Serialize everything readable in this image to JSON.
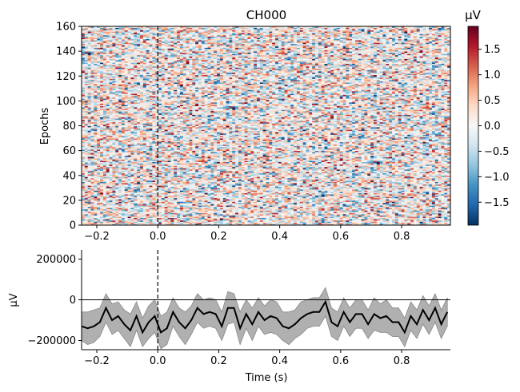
{
  "chart_data": [
    {
      "type": "heatmap",
      "title": "CH000",
      "ylabel": "Epochs",
      "xlim": [
        -0.25,
        0.96
      ],
      "ylim": [
        0,
        160
      ],
      "n_epochs": 160,
      "n_times": 120,
      "xticks": [
        -0.2,
        0.0,
        0.2,
        0.4,
        0.6,
        0.8
      ],
      "xtick_labels": [
        "−0.2",
        "0.0",
        "0.2",
        "0.4",
        "0.6",
        "0.8"
      ],
      "yticks": [
        0,
        20,
        40,
        60,
        80,
        100,
        120,
        140,
        160
      ],
      "ytick_labels": [
        "0",
        "20",
        "40",
        "60",
        "80",
        "100",
        "120",
        "140",
        "160"
      ],
      "event_line_x": 0.0,
      "colormap": "RdBu_r",
      "colorbar": {
        "label": "µV",
        "range": [
          -1.95,
          1.95
        ],
        "ticks": [
          -1.5,
          -1.0,
          -0.5,
          0.0,
          0.5,
          1.0,
          1.5
        ],
        "tick_labels": [
          "−1.5",
          "−1.0",
          "−0.5",
          "0.0",
          "0.5",
          "1.0",
          "1.5"
        ]
      }
    },
    {
      "type": "line",
      "xlabel": "Time (s)",
      "ylabel": "µV",
      "xlim": [
        -0.25,
        0.96
      ],
      "ylim": [
        -245000,
        245000
      ],
      "xticks": [
        -0.2,
        0.0,
        0.2,
        0.4,
        0.6,
        0.8
      ],
      "xtick_labels": [
        "−0.2",
        "0.0",
        "0.2",
        "0.4",
        "0.6",
        "0.8"
      ],
      "yticks": [
        -200000,
        0,
        200000
      ],
      "ytick_labels": [
        "−200000",
        "0",
        "200000"
      ],
      "event_line_x": 0.0,
      "zero_line_y": 0,
      "band_color": "#b0b0b0",
      "line_color": "#000000",
      "x": [
        -0.25,
        -0.23,
        -0.21,
        -0.19,
        -0.17,
        -0.15,
        -0.13,
        -0.11,
        -0.09,
        -0.07,
        -0.05,
        -0.03,
        -0.01,
        0.01,
        0.03,
        0.05,
        0.07,
        0.09,
        0.11,
        0.13,
        0.15,
        0.17,
        0.19,
        0.21,
        0.23,
        0.25,
        0.27,
        0.29,
        0.31,
        0.33,
        0.35,
        0.37,
        0.39,
        0.41,
        0.43,
        0.45,
        0.47,
        0.49,
        0.51,
        0.53,
        0.55,
        0.57,
        0.59,
        0.61,
        0.63,
        0.65,
        0.67,
        0.69,
        0.71,
        0.73,
        0.75,
        0.77,
        0.79,
        0.81,
        0.83,
        0.85,
        0.87,
        0.89,
        0.91,
        0.93,
        0.95
      ],
      "mean": [
        -130000,
        -140000,
        -130000,
        -110000,
        -40000,
        -100000,
        -80000,
        -120000,
        -150000,
        -80000,
        -160000,
        -110000,
        -80000,
        -160000,
        -140000,
        -60000,
        -110000,
        -140000,
        -100000,
        -40000,
        -70000,
        -60000,
        -70000,
        -130000,
        -40000,
        -40000,
        -140000,
        -70000,
        -120000,
        -60000,
        -100000,
        -80000,
        -90000,
        -130000,
        -140000,
        -120000,
        -90000,
        -70000,
        -60000,
        -60000,
        -10000,
        -110000,
        -130000,
        -60000,
        -110000,
        -70000,
        -70000,
        -120000,
        -70000,
        -90000,
        -80000,
        -110000,
        -110000,
        -160000,
        -80000,
        -120000,
        -50000,
        -100000,
        -40000,
        -120000,
        -60000
      ],
      "upper": [
        -60000,
        -60000,
        -50000,
        -40000,
        30000,
        -20000,
        -10000,
        -50000,
        -70000,
        -10000,
        -90000,
        -30000,
        0,
        -80000,
        -60000,
        10000,
        -40000,
        -60000,
        -30000,
        30000,
        0,
        10000,
        0,
        -60000,
        40000,
        30000,
        -60000,
        0,
        -40000,
        10000,
        -30000,
        0,
        -10000,
        -60000,
        -60000,
        -50000,
        -10000,
        0,
        10000,
        10000,
        60000,
        -40000,
        -60000,
        10000,
        -40000,
        0,
        0,
        -50000,
        10000,
        -20000,
        0,
        -40000,
        -40000,
        -90000,
        -10000,
        -50000,
        20000,
        -30000,
        30000,
        -50000,
        10000
      ],
      "lower": [
        -200000,
        -220000,
        -210000,
        -180000,
        -110000,
        -170000,
        -150000,
        -190000,
        -230000,
        -150000,
        -230000,
        -190000,
        -160000,
        -240000,
        -220000,
        -130000,
        -180000,
        -220000,
        -170000,
        -110000,
        -140000,
        -130000,
        -140000,
        -200000,
        -120000,
        -110000,
        -220000,
        -140000,
        -200000,
        -130000,
        -170000,
        -160000,
        -170000,
        -200000,
        -220000,
        -190000,
        -170000,
        -140000,
        -130000,
        -130000,
        -80000,
        -180000,
        -200000,
        -130000,
        -180000,
        -140000,
        -140000,
        -190000,
        -150000,
        -160000,
        -160000,
        -180000,
        -180000,
        -230000,
        -150000,
        -190000,
        -120000,
        -170000,
        -110000,
        -190000,
        -130000
      ]
    }
  ]
}
